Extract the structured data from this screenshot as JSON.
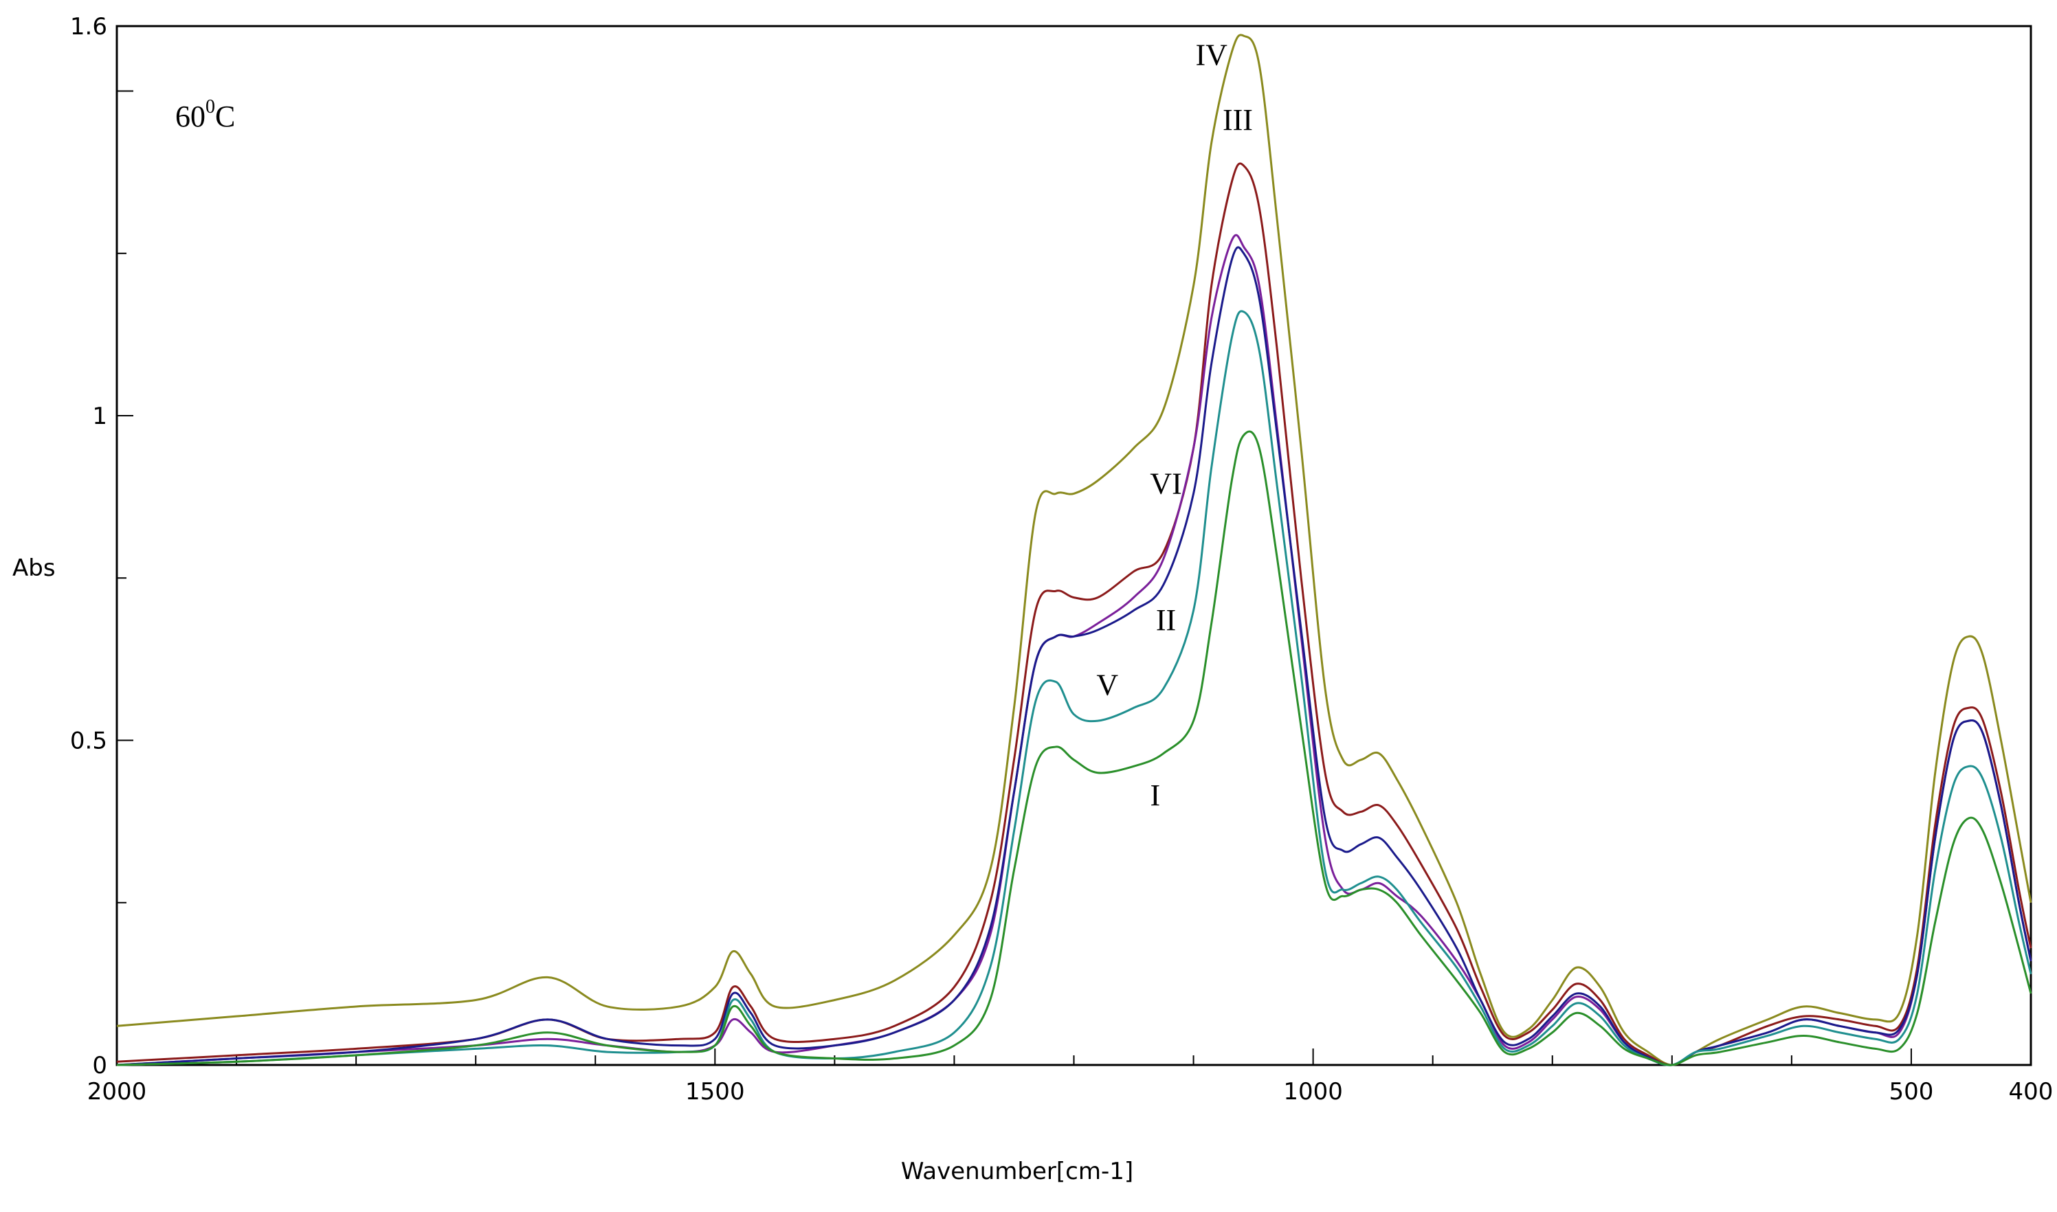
{
  "chart_data": {
    "type": "line",
    "title": "",
    "xlabel": "Wavenumber[cm-1]",
    "ylabel": "Abs",
    "xlim": [
      2000,
      400
    ],
    "ylim": [
      0,
      1.6
    ],
    "x_reversed": true,
    "grid": false,
    "legend": "none",
    "x_ticks": [
      2000,
      1500,
      1000,
      500,
      400
    ],
    "x_tick_labels": [
      "2000",
      "1500",
      "1000",
      "500",
      "400"
    ],
    "y_ticks": [
      0,
      0.5,
      1,
      1.6
    ],
    "y_tick_labels": [
      "0",
      "0.5",
      "1",
      "1.6"
    ],
    "temperature": {
      "base": "60",
      "sup": "0",
      "unit": "C"
    },
    "annotations": [
      {
        "text": "IV",
        "x": 1085,
        "y": 1.54
      },
      {
        "text": "III",
        "x": 1063,
        "y": 1.44
      },
      {
        "text": "VI",
        "x": 1123,
        "y": 0.88
      },
      {
        "text": "II",
        "x": 1123,
        "y": 0.67
      },
      {
        "text": "V",
        "x": 1172,
        "y": 0.57
      },
      {
        "text": "I",
        "x": 1132,
        "y": 0.4
      }
    ],
    "series": [
      {
        "color": "#8a8a1e",
        "x": [
          2000,
          1900,
          1800,
          1700,
          1640,
          1590,
          1530,
          1500,
          1485,
          1470,
          1450,
          1400,
          1350,
          1300,
          1270,
          1250,
          1232,
          1215,
          1200,
          1180,
          1150,
          1125,
          1100,
          1085,
          1068,
          1058,
          1045,
          1030,
          1010,
          990,
          975,
          960,
          945,
          930,
          910,
          880,
          860,
          840,
          820,
          800,
          780,
          760,
          740,
          720,
          700,
          680,
          660,
          620,
          590,
          560,
          530,
          510,
          495,
          480,
          465,
          452,
          440,
          425,
          410,
          400
        ],
        "y": [
          0.06,
          0.075,
          0.09,
          0.1,
          0.135,
          0.09,
          0.09,
          0.12,
          0.175,
          0.14,
          0.09,
          0.1,
          0.13,
          0.2,
          0.3,
          0.55,
          0.85,
          0.88,
          0.88,
          0.9,
          0.95,
          1.01,
          1.2,
          1.42,
          1.56,
          1.585,
          1.54,
          1.3,
          0.95,
          0.58,
          0.47,
          0.47,
          0.48,
          0.44,
          0.37,
          0.25,
          0.14,
          0.05,
          0.055,
          0.1,
          0.15,
          0.12,
          0.05,
          0.02,
          0.0,
          0.02,
          0.04,
          0.07,
          0.09,
          0.08,
          0.07,
          0.08,
          0.2,
          0.45,
          0.62,
          0.66,
          0.63,
          0.5,
          0.35,
          0.25
        ]
      },
      {
        "color": "#8b1a1a",
        "x": [
          2000,
          1900,
          1800,
          1700,
          1640,
          1590,
          1530,
          1500,
          1485,
          1470,
          1450,
          1400,
          1350,
          1300,
          1270,
          1250,
          1232,
          1215,
          1200,
          1180,
          1150,
          1125,
          1100,
          1085,
          1068,
          1058,
          1045,
          1030,
          1010,
          990,
          975,
          960,
          945,
          930,
          910,
          880,
          860,
          840,
          820,
          800,
          780,
          760,
          740,
          720,
          700,
          680,
          660,
          620,
          590,
          560,
          530,
          510,
          495,
          480,
          465,
          452,
          440,
          425,
          410,
          400
        ],
        "y": [
          0.005,
          0.015,
          0.025,
          0.04,
          0.07,
          0.04,
          0.04,
          0.05,
          0.12,
          0.09,
          0.04,
          0.04,
          0.06,
          0.12,
          0.25,
          0.47,
          0.7,
          0.73,
          0.72,
          0.72,
          0.76,
          0.79,
          0.95,
          1.2,
          1.36,
          1.385,
          1.32,
          1.1,
          0.75,
          0.45,
          0.39,
          0.39,
          0.4,
          0.37,
          0.31,
          0.21,
          0.12,
          0.045,
          0.05,
          0.085,
          0.125,
          0.1,
          0.04,
          0.015,
          0.0,
          0.02,
          0.03,
          0.06,
          0.075,
          0.07,
          0.06,
          0.06,
          0.15,
          0.37,
          0.52,
          0.55,
          0.53,
          0.42,
          0.27,
          0.18
        ]
      },
      {
        "color": "#7a1f9a",
        "x": [
          2000,
          1900,
          1800,
          1700,
          1640,
          1590,
          1530,
          1500,
          1485,
          1470,
          1450,
          1400,
          1350,
          1300,
          1270,
          1250,
          1232,
          1215,
          1200,
          1180,
          1150,
          1125,
          1100,
          1085,
          1068,
          1058,
          1045,
          1030,
          1010,
          990,
          975,
          960,
          945,
          930,
          910,
          880,
          860,
          840,
          820,
          800,
          780,
          760,
          740,
          720,
          700,
          680,
          660,
          620,
          590,
          560,
          530,
          510,
          495,
          480,
          465,
          452,
          440,
          425,
          410,
          400
        ],
        "y": [
          0.0,
          0.01,
          0.02,
          0.03,
          0.04,
          0.03,
          0.02,
          0.03,
          0.07,
          0.05,
          0.02,
          0.03,
          0.05,
          0.1,
          0.2,
          0.42,
          0.62,
          0.66,
          0.66,
          0.68,
          0.72,
          0.78,
          0.95,
          1.15,
          1.27,
          1.26,
          1.2,
          0.98,
          0.66,
          0.35,
          0.27,
          0.27,
          0.28,
          0.26,
          0.23,
          0.16,
          0.1,
          0.03,
          0.035,
          0.07,
          0.105,
          0.085,
          0.035,
          0.012,
          0.0,
          0.02,
          0.03,
          0.05,
          0.07,
          0.06,
          0.05,
          0.05,
          0.14,
          0.35,
          0.5,
          0.53,
          0.51,
          0.4,
          0.25,
          0.16
        ]
      },
      {
        "color": "#1a1a8b",
        "x": [
          2000,
          1900,
          1800,
          1700,
          1640,
          1590,
          1530,
          1500,
          1485,
          1470,
          1450,
          1400,
          1350,
          1300,
          1270,
          1250,
          1232,
          1215,
          1200,
          1180,
          1150,
          1125,
          1100,
          1085,
          1068,
          1058,
          1045,
          1030,
          1010,
          990,
          975,
          960,
          945,
          930,
          910,
          880,
          860,
          840,
          820,
          800,
          780,
          760,
          740,
          720,
          700,
          680,
          660,
          620,
          590,
          560,
          530,
          510,
          495,
          480,
          465,
          452,
          440,
          425,
          410,
          400
        ],
        "y": [
          0.0,
          0.01,
          0.02,
          0.04,
          0.07,
          0.04,
          0.03,
          0.04,
          0.11,
          0.08,
          0.03,
          0.03,
          0.05,
          0.1,
          0.21,
          0.42,
          0.62,
          0.66,
          0.66,
          0.67,
          0.7,
          0.74,
          0.88,
          1.08,
          1.24,
          1.25,
          1.18,
          0.97,
          0.67,
          0.38,
          0.33,
          0.34,
          0.35,
          0.32,
          0.27,
          0.18,
          0.1,
          0.035,
          0.04,
          0.075,
          0.11,
          0.09,
          0.035,
          0.012,
          0.0,
          0.02,
          0.03,
          0.05,
          0.07,
          0.06,
          0.05,
          0.055,
          0.14,
          0.35,
          0.5,
          0.53,
          0.51,
          0.4,
          0.25,
          0.16
        ]
      },
      {
        "color": "#1f8f8f",
        "x": [
          2000,
          1900,
          1800,
          1700,
          1640,
          1590,
          1530,
          1500,
          1485,
          1470,
          1450,
          1400,
          1350,
          1300,
          1270,
          1250,
          1232,
          1215,
          1200,
          1180,
          1150,
          1125,
          1100,
          1085,
          1068,
          1058,
          1045,
          1030,
          1010,
          990,
          975,
          960,
          945,
          930,
          910,
          880,
          860,
          840,
          820,
          800,
          780,
          760,
          740,
          720,
          700,
          680,
          660,
          620,
          590,
          560,
          530,
          510,
          495,
          480,
          465,
          452,
          440,
          425,
          410,
          400
        ],
        "y": [
          0.0,
          0.005,
          0.015,
          0.025,
          0.03,
          0.02,
          0.02,
          0.03,
          0.1,
          0.07,
          0.02,
          0.01,
          0.02,
          0.05,
          0.15,
          0.36,
          0.56,
          0.59,
          0.54,
          0.53,
          0.55,
          0.58,
          0.7,
          0.92,
          1.12,
          1.16,
          1.1,
          0.89,
          0.6,
          0.3,
          0.27,
          0.28,
          0.29,
          0.27,
          0.22,
          0.15,
          0.09,
          0.025,
          0.03,
          0.06,
          0.095,
          0.075,
          0.03,
          0.01,
          0.0,
          0.02,
          0.025,
          0.045,
          0.06,
          0.05,
          0.04,
          0.04,
          0.11,
          0.3,
          0.43,
          0.46,
          0.44,
          0.35,
          0.22,
          0.14
        ]
      },
      {
        "color": "#2a8f2a",
        "x": [
          2000,
          1900,
          1800,
          1700,
          1640,
          1590,
          1530,
          1500,
          1485,
          1470,
          1450,
          1400,
          1350,
          1300,
          1270,
          1250,
          1232,
          1215,
          1200,
          1180,
          1150,
          1125,
          1100,
          1085,
          1068,
          1058,
          1045,
          1030,
          1010,
          990,
          975,
          960,
          945,
          930,
          910,
          880,
          860,
          840,
          820,
          800,
          780,
          760,
          740,
          720,
          700,
          680,
          660,
          620,
          590,
          560,
          530,
          510,
          495,
          480,
          465,
          452,
          440,
          425,
          410,
          400
        ],
        "y": [
          0.0,
          0.005,
          0.015,
          0.03,
          0.05,
          0.03,
          0.02,
          0.03,
          0.09,
          0.06,
          0.02,
          0.01,
          0.01,
          0.03,
          0.1,
          0.3,
          0.46,
          0.49,
          0.47,
          0.45,
          0.46,
          0.48,
          0.53,
          0.68,
          0.9,
          0.97,
          0.95,
          0.78,
          0.52,
          0.28,
          0.26,
          0.27,
          0.27,
          0.25,
          0.2,
          0.13,
          0.08,
          0.02,
          0.025,
          0.05,
          0.08,
          0.06,
          0.025,
          0.01,
          0.0,
          0.015,
          0.02,
          0.035,
          0.045,
          0.035,
          0.025,
          0.025,
          0.08,
          0.22,
          0.34,
          0.38,
          0.36,
          0.28,
          0.18,
          0.11
        ]
      }
    ]
  }
}
